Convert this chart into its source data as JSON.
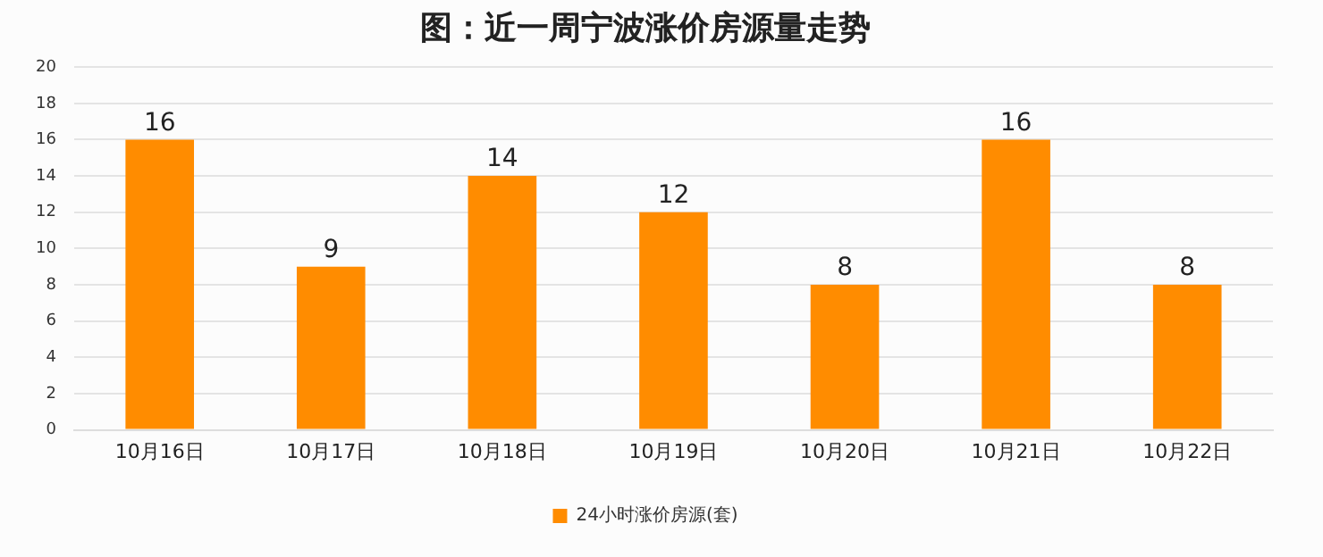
{
  "chart_data": {
    "type": "bar",
    "title": "图：近一周宁波涨价房源量走势",
    "categories": [
      "10月16日",
      "10月17日",
      "10月18日",
      "10月19日",
      "10月20日",
      "10月21日",
      "10月22日"
    ],
    "series": [
      {
        "name": "24小时涨价房源(套)",
        "color": "#ff8c00",
        "values": [
          16,
          9,
          14,
          12,
          8,
          16,
          8
        ]
      }
    ],
    "ylim": [
      0,
      20
    ],
    "yticks": [
      0,
      2,
      4,
      6,
      8,
      10,
      12,
      14,
      16,
      18,
      20
    ],
    "grid": "y",
    "legend": "bottom",
    "data_labels": true
  }
}
